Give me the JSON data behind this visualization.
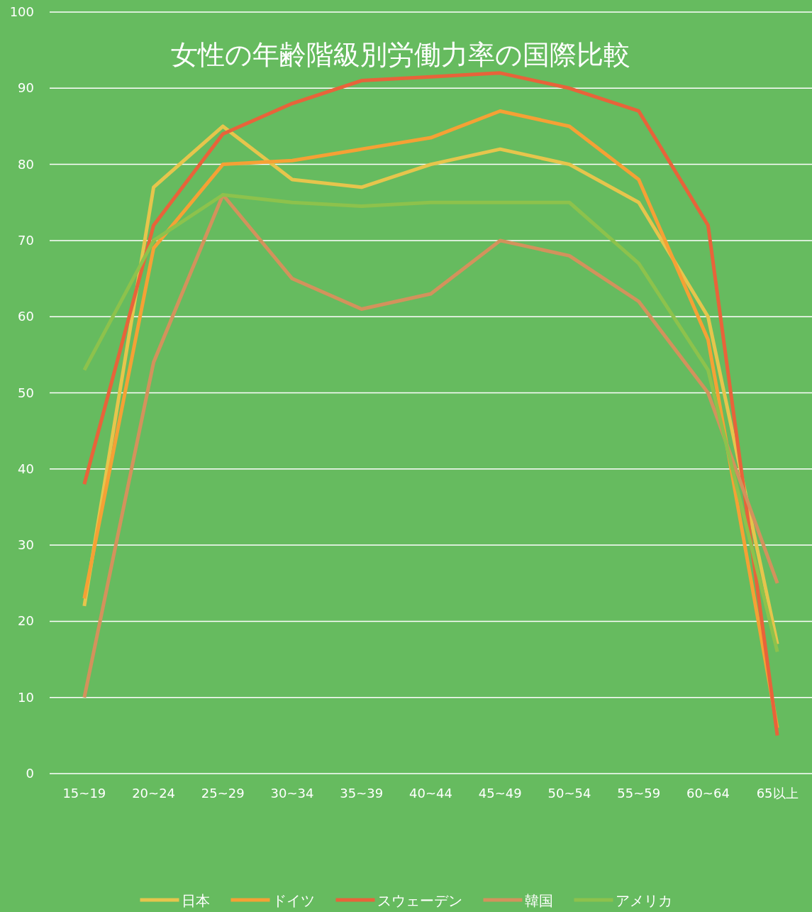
{
  "chart_data": {
    "type": "line",
    "title": "女性の年齢階級別労働力率の国際比較",
    "categories": [
      "15~19",
      "20~24",
      "25~29",
      "30~34",
      "35~39",
      "40~44",
      "45~49",
      "50~54",
      "55~59",
      "60~64",
      "65以上"
    ],
    "series": [
      {
        "name": "日本",
        "color": "#e6c54c",
        "values": [
          22,
          77,
          85,
          78,
          77,
          80,
          82,
          80,
          75,
          60,
          17
        ]
      },
      {
        "name": "ドイツ",
        "color": "#f5a135",
        "values": [
          23,
          69,
          80,
          80.5,
          82,
          83.5,
          87,
          85,
          78,
          57,
          6
        ]
      },
      {
        "name": "スウェーデン",
        "color": "#e8633a",
        "values": [
          38,
          72,
          84,
          88,
          91,
          91.5,
          92,
          90,
          87,
          72,
          5
        ]
      },
      {
        "name": "韓国",
        "color": "#d3925c",
        "values": [
          10,
          54,
          76,
          65,
          61,
          63,
          70,
          68,
          62,
          50,
          25
        ]
      },
      {
        "name": "アメリカ",
        "color": "#8dc24c",
        "values": [
          53,
          70,
          76,
          75,
          74.5,
          75,
          75,
          75,
          67,
          53,
          16
        ]
      }
    ],
    "ylim": [
      0,
      100
    ],
    "yticks": [
      0,
      10,
      20,
      30,
      40,
      50,
      60,
      70,
      80,
      90,
      100
    ],
    "grid": "y",
    "legend": "bottom",
    "marker": "none"
  }
}
